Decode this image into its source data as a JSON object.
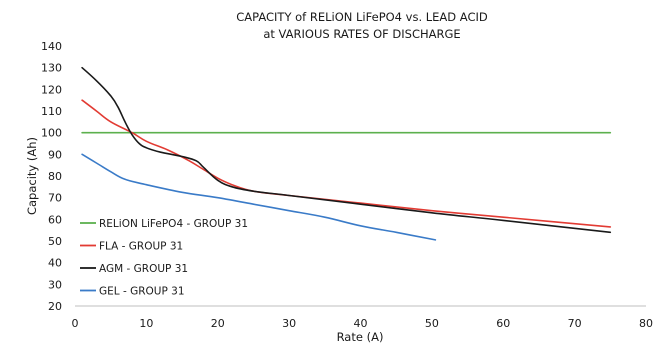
{
  "chart_data": {
    "type": "line",
    "title": [
      "CAPACITY of RELiON LiFePO4 vs. LEAD ACID",
      "at VARIOUS RATES OF DISCHARGE"
    ],
    "xlabel": "Rate (A)",
    "ylabel": "Capacity (Ah)",
    "xlim": [
      0,
      80
    ],
    "ylim": [
      20,
      140
    ],
    "xticks": [
      0,
      10,
      20,
      30,
      40,
      50,
      60,
      70,
      80
    ],
    "yticks": [
      20,
      30,
      40,
      50,
      60,
      70,
      80,
      90,
      100,
      110,
      120,
      130,
      140
    ],
    "grid": false,
    "legend_position": "bottom-left",
    "series": [
      {
        "name": "RELiON LiFePO4 - GROUP 31",
        "color": "#5cb04e",
        "points": [
          [
            1,
            100
          ],
          [
            75,
            100
          ]
        ]
      },
      {
        "name": "FLA - GROUP 31",
        "color": "#e23b33",
        "points": [
          [
            1,
            115
          ],
          [
            3,
            110
          ],
          [
            5,
            105
          ],
          [
            8,
            100
          ],
          [
            10,
            96
          ],
          [
            13,
            92
          ],
          [
            16,
            87
          ],
          [
            18,
            83
          ],
          [
            20,
            79
          ],
          [
            22,
            76
          ],
          [
            25,
            73
          ],
          [
            30,
            71
          ],
          [
            40,
            67.5
          ],
          [
            50,
            64
          ],
          [
            60,
            61
          ],
          [
            75,
            56.5
          ]
        ]
      },
      {
        "name": "AGM - GROUP 31",
        "color": "#1a1a1a",
        "points": [
          [
            1,
            130
          ],
          [
            3,
            124
          ],
          [
            5,
            117
          ],
          [
            6,
            112
          ],
          [
            7,
            105
          ],
          [
            8,
            99
          ],
          [
            9,
            95
          ],
          [
            10,
            93
          ],
          [
            12,
            91
          ],
          [
            15,
            89
          ],
          [
            17,
            87
          ],
          [
            18,
            84
          ],
          [
            20,
            78
          ],
          [
            22,
            75
          ],
          [
            25,
            73
          ],
          [
            30,
            71
          ],
          [
            40,
            67
          ],
          [
            50,
            63
          ],
          [
            60,
            59.5
          ],
          [
            75,
            54
          ]
        ]
      },
      {
        "name": "GEL - GROUP 31",
        "color": "#3a7bc8",
        "points": [
          [
            1,
            90
          ],
          [
            3,
            86
          ],
          [
            5,
            82
          ],
          [
            7,
            78.5
          ],
          [
            10,
            76
          ],
          [
            15,
            72.5
          ],
          [
            20,
            70
          ],
          [
            25,
            67
          ],
          [
            30,
            64
          ],
          [
            35,
            61
          ],
          [
            40,
            57
          ],
          [
            45,
            54
          ],
          [
            50.5,
            50.5
          ]
        ]
      }
    ]
  }
}
